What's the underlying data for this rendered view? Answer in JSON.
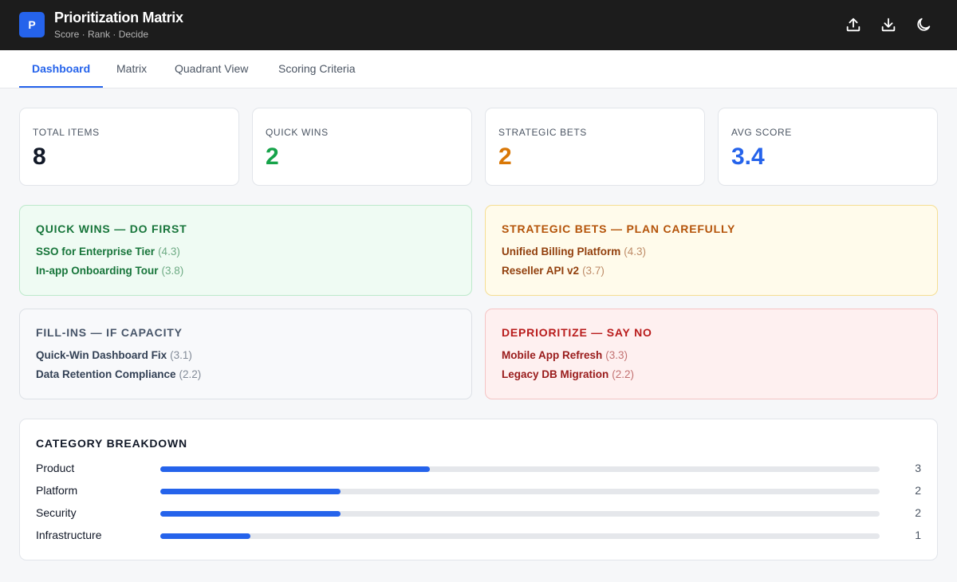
{
  "header": {
    "logo": "P",
    "title": "Prioritization Matrix",
    "subtitle": "Score · Rank · Decide"
  },
  "tabs": [
    "Dashboard",
    "Matrix",
    "Quadrant View",
    "Scoring Criteria"
  ],
  "stats": [
    {
      "label": "TOTAL ITEMS",
      "value": 8
    },
    {
      "label": "QUICK WINS",
      "value": 2
    },
    {
      "label": "STRATEGIC BETS",
      "value": 2
    },
    {
      "label": "AVG SCORE",
      "value": 3.4
    }
  ],
  "quadrants": [
    {
      "title": "QUICK WINS — DO FIRST",
      "items": [
        {
          "name": "SSO for Enterprise Tier",
          "score": "(4.3)"
        },
        {
          "name": "In-app Onboarding Tour",
          "score": "(3.8)"
        }
      ]
    },
    {
      "title": "STRATEGIC BETS — PLAN CAREFULLY",
      "items": [
        {
          "name": "Unified Billing Platform",
          "score": "(4.3)"
        },
        {
          "name": "Reseller API v2",
          "score": "(3.7)"
        }
      ]
    },
    {
      "title": "FILL-INS — IF CAPACITY",
      "items": [
        {
          "name": "Quick-Win Dashboard Fix",
          "score": "(3.1)"
        },
        {
          "name": "Data Retention Compliance",
          "score": "(2.2)"
        }
      ]
    },
    {
      "title": "DEPRIORITIZE — SAY NO",
      "items": [
        {
          "name": "Mobile App Refresh",
          "score": "(3.3)"
        },
        {
          "name": "Legacy DB Migration",
          "score": "(2.2)"
        }
      ]
    }
  ],
  "category_breakdown": {
    "title": "CATEGORY BREAKDOWN",
    "rows": [
      {
        "name": "Product",
        "count": 3
      },
      {
        "name": "Platform",
        "count": 2
      },
      {
        "name": "Security",
        "count": 2
      },
      {
        "name": "Infrastructure",
        "count": 1
      }
    ]
  }
}
